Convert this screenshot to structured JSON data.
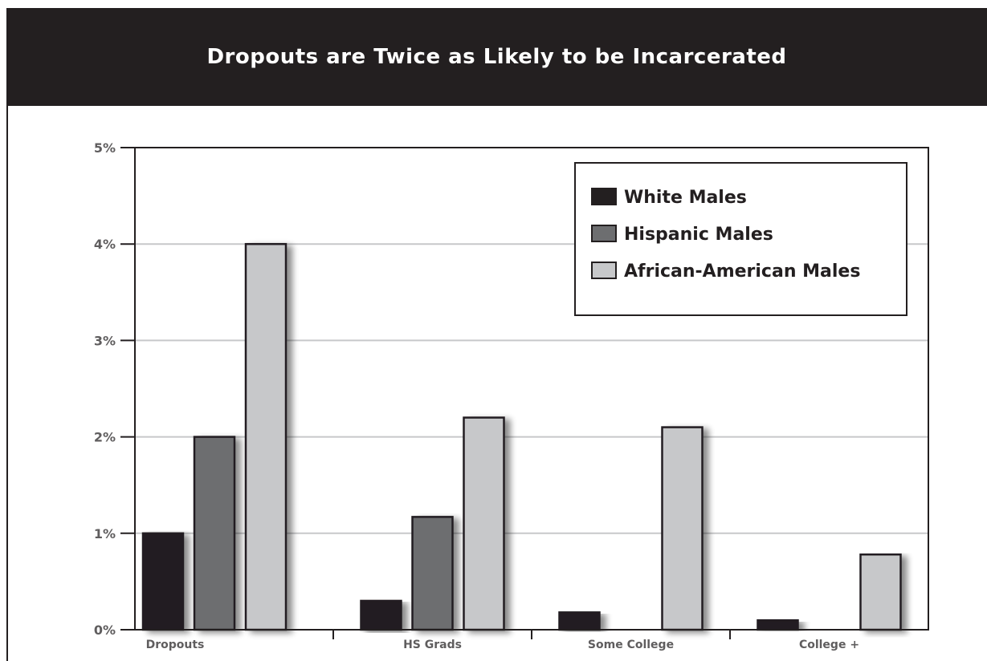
{
  "chart_data": {
    "type": "bar",
    "title": "Dropouts are Twice as Likely to be Incarcerated",
    "categories": [
      "Dropouts",
      "HS Grads",
      "Some College",
      "College +"
    ],
    "series": [
      {
        "name": "White Males",
        "color": "#231f20",
        "values": [
          1.0,
          0.3,
          0.18,
          0.1
        ]
      },
      {
        "name": "Hispanic Males",
        "color": "#6d6e70",
        "values": [
          2.0,
          1.17,
          0,
          0
        ]
      },
      {
        "name": "African-American Males",
        "color": "#c7c8ca",
        "values": [
          4.0,
          2.2,
          2.1,
          0.78
        ]
      }
    ],
    "ylim": [
      0,
      5
    ],
    "yticks": [
      "0%",
      "1%",
      "2%",
      "3%",
      "4%",
      "5%"
    ],
    "grid": true,
    "legend_position": "top-right"
  }
}
